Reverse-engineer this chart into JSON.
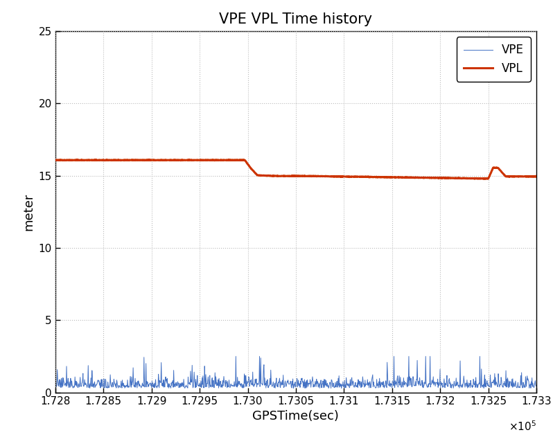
{
  "title": "VPE VPL Time history",
  "xlabel": "GPSTime(sec)",
  "ylabel": "meter",
  "xlim": [
    172800,
    173300
  ],
  "ylim": [
    0,
    25
  ],
  "xticks": [
    172800,
    172850,
    172900,
    172950,
    173000,
    173050,
    173100,
    173150,
    173200,
    173250,
    173300
  ],
  "xtick_labels": [
    "1.728",
    "1.7285",
    "1.729",
    "1.7295",
    "1.730",
    "1.7305",
    "1.731",
    "1.7315",
    "1.732",
    "1.7325",
    "1.733"
  ],
  "yticks": [
    0,
    5,
    10,
    15,
    20,
    25
  ],
  "vpe_color": "#4472C4",
  "vpl_color": "#CC3300",
  "vpe_linewidth": 0.7,
  "vpl_linewidth": 2.2,
  "bg_color": "#FFFFFF",
  "grid_color": "#BBBBBB",
  "grid_style": ":",
  "title_fontsize": 15,
  "label_fontsize": 13,
  "tick_fontsize": 11
}
